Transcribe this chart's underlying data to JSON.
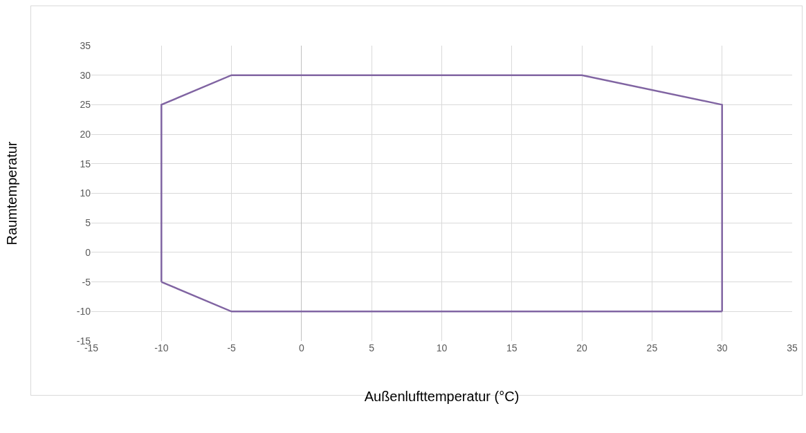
{
  "chart_data": {
    "type": "line",
    "xlabel": "Außenlufttemperatur (°C)",
    "ylabel": "Raumtemperatur",
    "series": [
      {
        "color": "#8064a2",
        "x": [
          -10,
          -10,
          -5,
          20,
          30,
          30
        ],
        "values": [
          -5,
          25,
          30,
          30,
          25,
          -10
        ]
      },
      {
        "color": "#8064a2",
        "x": [
          -10,
          -5,
          30
        ],
        "values": [
          -5,
          -10,
          -10
        ]
      }
    ],
    "xlim": [
      -15,
      35
    ],
    "xticks": [
      -15,
      -10,
      -5,
      0,
      5,
      10,
      15,
      20,
      25,
      30,
      35
    ],
    "ylim": [
      -15,
      35
    ],
    "yticks": [
      -15,
      -10,
      -5,
      0,
      5,
      10,
      15,
      20,
      25,
      30,
      35
    ],
    "grid": true,
    "marker": "none",
    "line_style": "solid"
  }
}
